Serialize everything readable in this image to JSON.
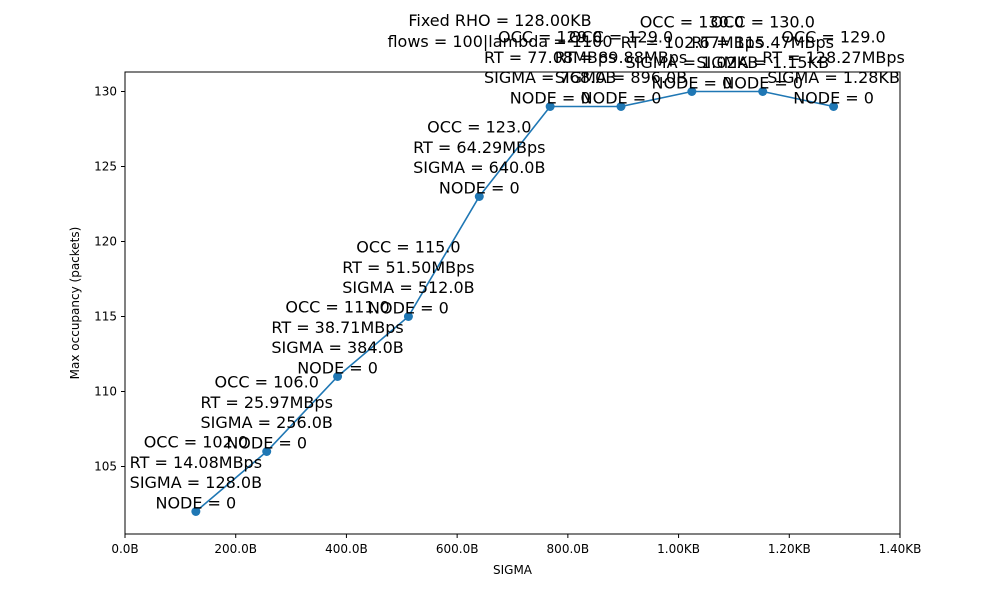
{
  "chart_data": {
    "type": "line",
    "title_lines": [
      "Fixed RHO = 128.00KB",
      "flows = 100|lambda = 1100"
    ],
    "xlabel": "SIGMA",
    "ylabel": "Max occupancy (packets)",
    "xlim": [
      0,
      1400
    ],
    "ylim": [
      100.5,
      131.3
    ],
    "x_ticks": [
      0,
      200,
      400,
      600,
      800,
      1000,
      1200,
      1400
    ],
    "x_tick_labels": [
      "0.0B",
      "200.0B",
      "400.0B",
      "600.0B",
      "800.0B",
      "1.00KB",
      "1.20KB",
      "1.40KB"
    ],
    "y_ticks": [
      105,
      110,
      115,
      120,
      125,
      130
    ],
    "y_tick_labels": [
      "105",
      "110",
      "115",
      "120",
      "125",
      "130"
    ],
    "grid": false,
    "line_color": "#1f77b4",
    "series": [
      {
        "x": [
          128,
          256,
          384,
          512,
          640,
          768,
          896,
          1024,
          1152,
          1280
        ],
        "y": [
          102,
          106,
          111,
          115,
          123,
          129,
          129,
          130,
          130,
          129
        ]
      }
    ],
    "annotations": [
      [
        "OCC = 102.0",
        "RT = 14.08MBps",
        "SIGMA = 128.0B",
        "NODE = 0"
      ],
      [
        "OCC = 106.0",
        "RT = 25.97MBps",
        "SIGMA = 256.0B",
        "NODE = 0"
      ],
      [
        "OCC = 111.0",
        "RT = 38.71MBps",
        "SIGMA = 384.0B",
        "NODE = 0"
      ],
      [
        "OCC = 115.0",
        "RT = 51.50MBps",
        "SIGMA = 512.0B",
        "NODE = 0"
      ],
      [
        "OCC = 123.0",
        "RT = 64.29MBps",
        "SIGMA = 640.0B",
        "NODE = 0"
      ],
      [
        "OCC = 129.0",
        "RT = 77.08MBps",
        "SIGMA = 768.0B",
        "NODE = 0"
      ],
      [
        "OCC = 129.0",
        "RT = 89.88MBps",
        "SIGMA = 896.0B",
        "NODE = 0"
      ],
      [
        "OCC = 130.0",
        "RT = 102.67MBps",
        "SIGMA = 1.02KB",
        "NODE = 0"
      ],
      [
        "OCC = 130.0",
        "RT = 115.47MBps",
        "SIGMA = 1.15KB",
        "NODE = 0"
      ],
      [
        "OCC = 129.0",
        "RT = 128.27MBps",
        "SIGMA = 1.28KB",
        "NODE = 0"
      ]
    ]
  }
}
